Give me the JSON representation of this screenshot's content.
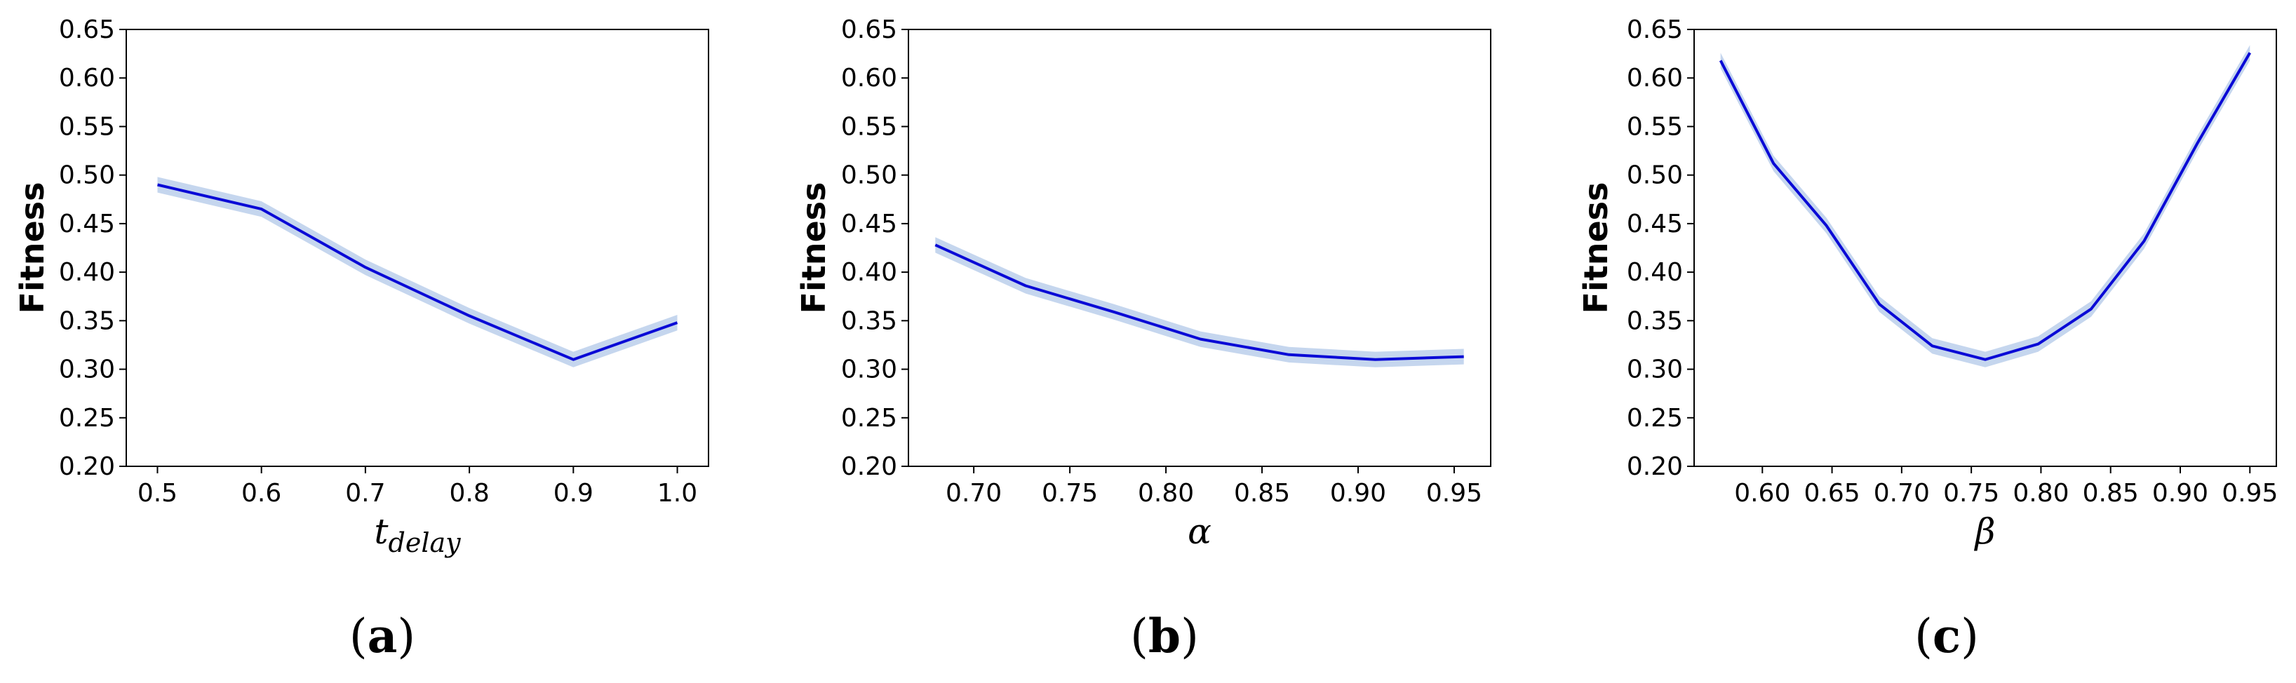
{
  "chart_data": [
    {
      "type": "line",
      "panel_label": "a",
      "xlabel": "t",
      "xlabel_sub": "delay",
      "ylabel": "Fitness",
      "xlim": [
        0.47,
        1.03
      ],
      "ylim": [
        0.2,
        0.65
      ],
      "xticks": [
        "0.5",
        "0.6",
        "0.7",
        "0.8",
        "0.9",
        "1.0"
      ],
      "xtick_values": [
        0.5,
        0.6,
        0.7,
        0.8,
        0.9,
        1.0
      ],
      "yticks": [
        "0.20",
        "0.25",
        "0.30",
        "0.35",
        "0.40",
        "0.45",
        "0.50",
        "0.55",
        "0.60",
        "0.65"
      ],
      "ytick_values": [
        0.2,
        0.25,
        0.3,
        0.35,
        0.4,
        0.45,
        0.5,
        0.55,
        0.6,
        0.65
      ],
      "x": [
        0.5,
        0.6,
        0.7,
        0.8,
        0.9,
        1.0
      ],
      "y": [
        0.49,
        0.465,
        0.405,
        0.355,
        0.31,
        0.348
      ],
      "band": 0.008,
      "line_color": "#0a0ad6",
      "band_color": "#c5d6ee"
    },
    {
      "type": "line",
      "panel_label": "b",
      "xlabel": "α",
      "ylabel": "Fitness",
      "xlim": [
        0.666,
        0.969
      ],
      "ylim": [
        0.2,
        0.65
      ],
      "xticks": [
        "0.70",
        "0.75",
        "0.80",
        "0.85",
        "0.90",
        "0.95"
      ],
      "xtick_values": [
        0.7,
        0.75,
        0.8,
        0.85,
        0.9,
        0.95
      ],
      "yticks": [
        "0.20",
        "0.25",
        "0.30",
        "0.35",
        "0.40",
        "0.45",
        "0.50",
        "0.55",
        "0.60",
        "0.65"
      ],
      "ytick_values": [
        0.2,
        0.25,
        0.3,
        0.35,
        0.4,
        0.45,
        0.5,
        0.55,
        0.6,
        0.65
      ],
      "x": [
        0.68,
        0.727,
        0.773,
        0.818,
        0.864,
        0.909,
        0.955
      ],
      "y": [
        0.428,
        0.386,
        0.359,
        0.331,
        0.315,
        0.31,
        0.313
      ],
      "band": 0.008,
      "line_color": "#0a0ad6",
      "band_color": "#c5d6ee"
    },
    {
      "type": "line",
      "panel_label": "c",
      "xlabel": "β",
      "ylabel": "Fitness",
      "xlim": [
        0.551,
        0.969
      ],
      "ylim": [
        0.2,
        0.65
      ],
      "xticks": [
        "0.60",
        "0.65",
        "0.70",
        "0.75",
        "0.80",
        "0.85",
        "0.90",
        "0.95"
      ],
      "xtick_values": [
        0.6,
        0.65,
        0.7,
        0.75,
        0.8,
        0.85,
        0.9,
        0.95
      ],
      "yticks": [
        "0.20",
        "0.25",
        "0.30",
        "0.35",
        "0.40",
        "0.45",
        "0.50",
        "0.55",
        "0.60",
        "0.65"
      ],
      "ytick_values": [
        0.2,
        0.25,
        0.3,
        0.35,
        0.4,
        0.45,
        0.5,
        0.55,
        0.6,
        0.65
      ],
      "x": [
        0.57,
        0.608,
        0.646,
        0.684,
        0.722,
        0.76,
        0.798,
        0.836,
        0.874,
        0.912,
        0.95
      ],
      "y": [
        0.618,
        0.512,
        0.448,
        0.367,
        0.324,
        0.31,
        0.326,
        0.362,
        0.432,
        0.532,
        0.626
      ],
      "band": 0.008,
      "line_color": "#0a0ad6",
      "band_color": "#c5d6ee"
    }
  ]
}
